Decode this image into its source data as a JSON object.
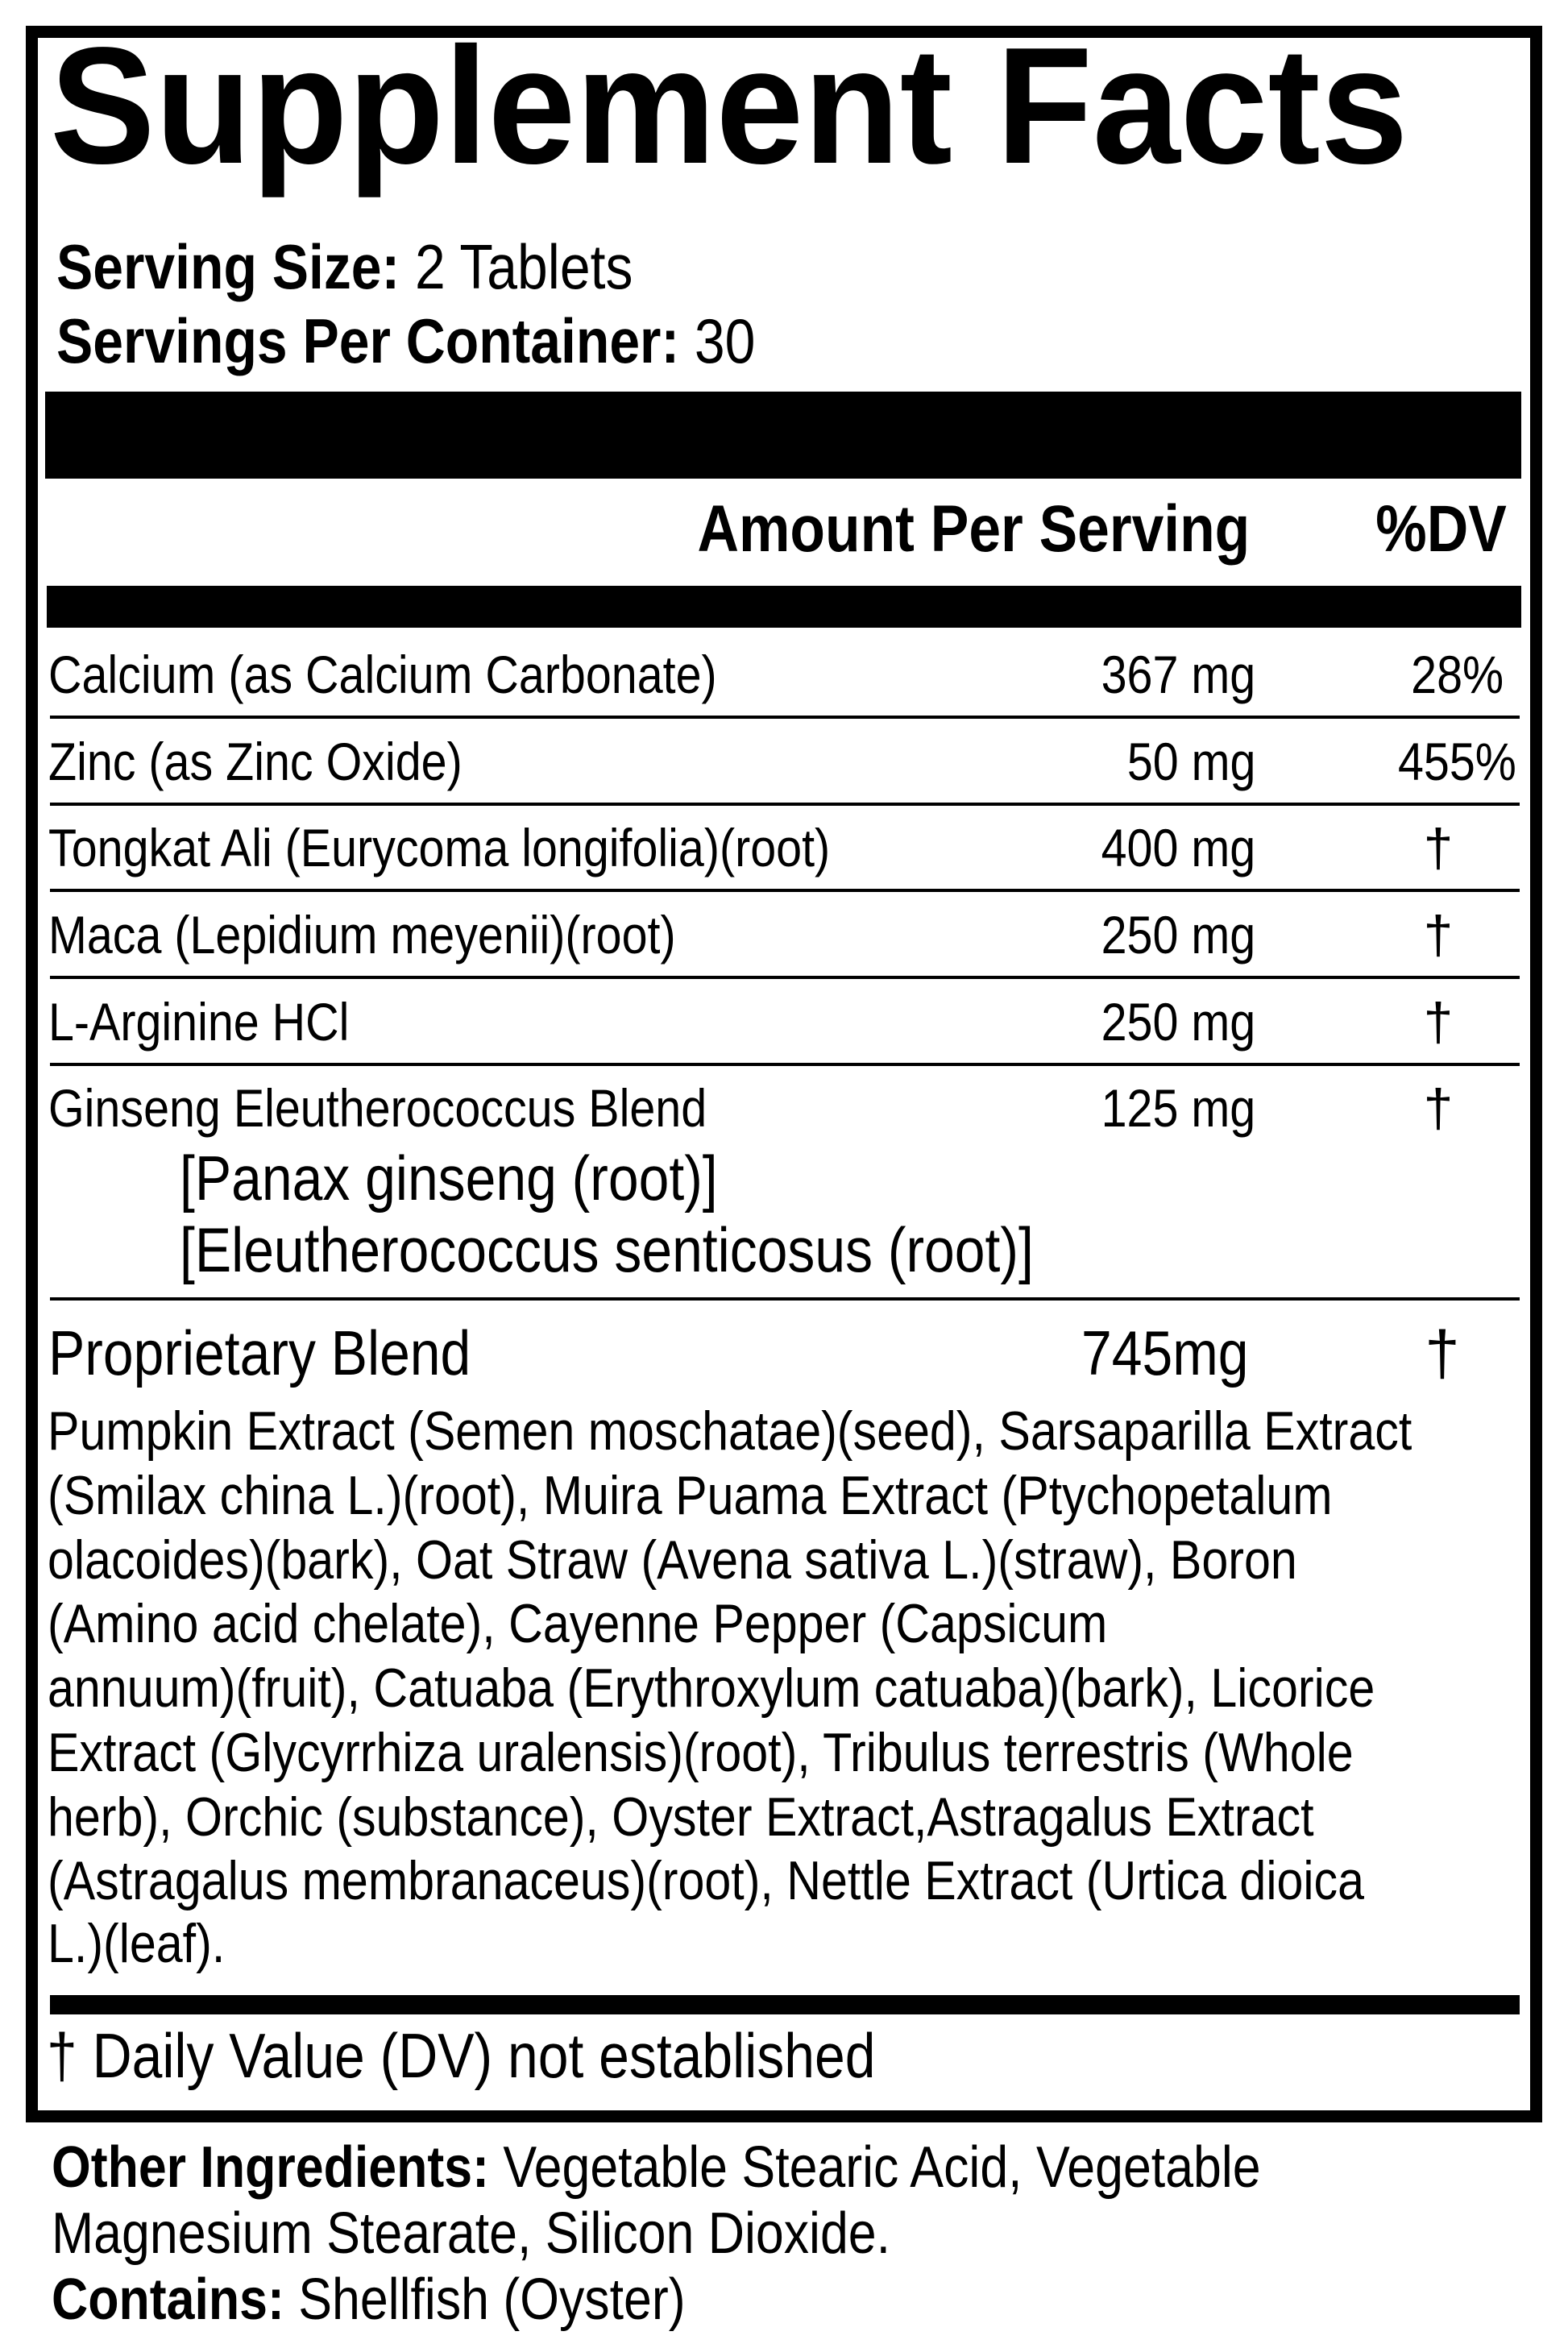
{
  "title": "Supplement Facts",
  "serving": {
    "size_label": "Serving Size:",
    "size_value": " 2 Tablets",
    "per_container_label": "Servings Per Container:",
    "per_container_value": " 30"
  },
  "header": {
    "amount": "Amount Per Serving",
    "dv": "%DV"
  },
  "rows": [
    {
      "name": "Calcium (as Calcium Carbonate)",
      "amount": "367 mg",
      "dv": "28%"
    },
    {
      "name": "Zinc (as Zinc Oxide)",
      "amount": "50 mg",
      "dv": "455%"
    },
    {
      "name": "Tongkat Ali (Eurycoma longifolia)(root)",
      "amount": "400 mg",
      "dv": "†"
    },
    {
      "name": "Maca (Lepidium meyenii)(root)",
      "amount": "250 mg",
      "dv": "†"
    },
    {
      "name": "L-Arginine HCl",
      "amount": "250 mg",
      "dv": "†"
    },
    {
      "name": "Ginseng Eleutherococcus Blend",
      "amount": "125 mg",
      "dv": "†",
      "sub": [
        "[Panax ginseng (root)]",
        "[Eleutherococcus senticosus (root)]"
      ]
    }
  ],
  "proprietary": {
    "name": "Proprietary Blend",
    "amount": "745mg",
    "dv": "†",
    "lines": [
      "Pumpkin Extract (Semen moschatae)(seed), Sarsaparilla Extract",
      "(Smilax china L.)(root), Muira Puama Extract (Ptychopetalum",
      "olacoides)(bark), Oat Straw (Avena sativa L.)(straw), Boron",
      "(Amino acid chelate), Cayenne Pepper (Capsicum",
      "annuum)(fruit), Catuaba (Erythroxylum catuaba)(bark), Licorice",
      "Extract (Glycyrrhiza uralensis)(root), Tribulus terrestris (Whole",
      "herb), Orchic (substance), Oyster Extract,Astragalus Extract",
      "(Astragalus membranaceus)(root), Nettle Extract (Urtica dioica",
      "L.)(leaf)."
    ]
  },
  "footnote": "† Daily Value (DV) not established",
  "other": {
    "label": "Other Ingredients:",
    "line1": " Vegetable Stearic Acid, Vegetable",
    "line2": "Magnesium Stearate, Silicon Dioxide.",
    "contains_label": "Contains:",
    "contains_value": " Shellfish (Oyster)"
  }
}
